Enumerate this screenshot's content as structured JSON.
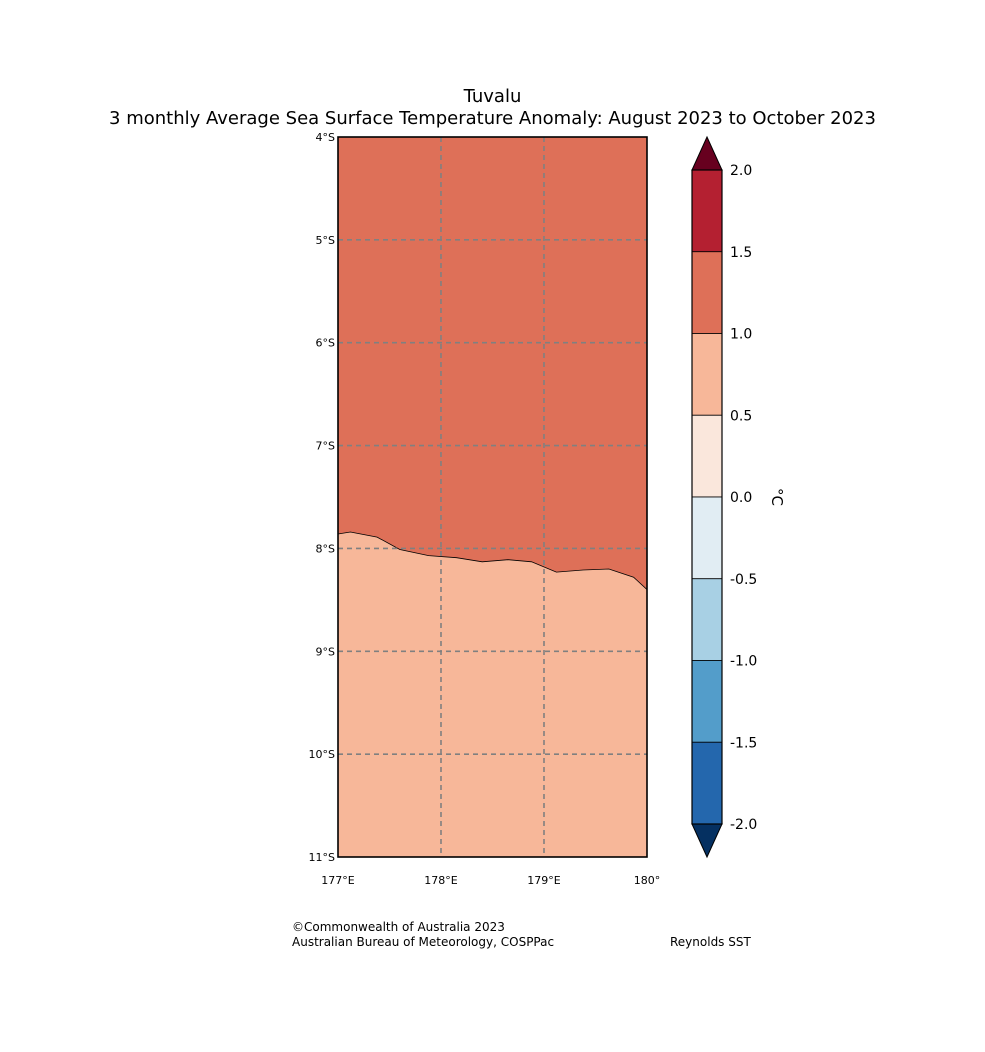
{
  "title": "Tuvalu",
  "subtitle": "3 monthly Average Sea Surface Temperature Anomaly: August 2023 to October 2023",
  "map": {
    "lat_range": [
      -11,
      -4
    ],
    "lon_range": [
      177,
      180
    ],
    "lat_ticks": [
      {
        "value": -4,
        "label": "4°S"
      },
      {
        "value": -5,
        "label": "5°S"
      },
      {
        "value": -6,
        "label": "6°S"
      },
      {
        "value": -7,
        "label": "7°S"
      },
      {
        "value": -8,
        "label": "8°S"
      },
      {
        "value": -9,
        "label": "9°S"
      },
      {
        "value": -10,
        "label": "10°S"
      },
      {
        "value": -11,
        "label": "11°S"
      }
    ],
    "lon_ticks": [
      {
        "value": 177,
        "label": "177°E"
      },
      {
        "value": 178,
        "label": "178°E"
      },
      {
        "value": 179,
        "label": "179°E"
      },
      {
        "value": 180,
        "label": "180°"
      }
    ],
    "gridlines": true,
    "regions": [
      {
        "range": "1.0 to 1.5",
        "color": "#de7058"
      },
      {
        "range": "0.5 to 1.0",
        "color": "#f7b799"
      }
    ],
    "boundary": [
      [
        177.0,
        -7.86
      ],
      [
        177.12,
        -7.84
      ],
      [
        177.38,
        -7.89
      ],
      [
        177.6,
        -8.01
      ],
      [
        177.88,
        -8.07
      ],
      [
        178.15,
        -8.09
      ],
      [
        178.4,
        -8.13
      ],
      [
        178.65,
        -8.11
      ],
      [
        178.88,
        -8.13
      ],
      [
        179.12,
        -8.23
      ],
      [
        179.38,
        -8.21
      ],
      [
        179.63,
        -8.2
      ],
      [
        179.87,
        -8.28
      ],
      [
        180.0,
        -8.4
      ]
    ]
  },
  "colorbar": {
    "unit": "°C",
    "ticks": [
      "2.0",
      "1.5",
      "1.0",
      "0.5",
      "0.0",
      "-0.5",
      "-1.0",
      "-1.5",
      "-2.0"
    ],
    "over_color": "#67001f",
    "under_color": "#053061",
    "bands": [
      {
        "range": "1.5 to 2.0",
        "color": "#b42031"
      },
      {
        "range": "1.0 to 1.5",
        "color": "#de7058"
      },
      {
        "range": "0.5 to 1.0",
        "color": "#f7b799"
      },
      {
        "range": "0.0 to 0.5",
        "color": "#fae7dc"
      },
      {
        "range": "-0.5 to 0.0",
        "color": "#e1edf3"
      },
      {
        "range": "-1.0 to -0.5",
        "color": "#a8d0e4"
      },
      {
        "range": "-1.5 to -1.0",
        "color": "#539dca"
      },
      {
        "range": "-2.0 to -1.5",
        "color": "#2467ad"
      }
    ]
  },
  "footer": {
    "copyright": "©Commonwealth of Australia 2023",
    "agency": "Australian Bureau of Meteorology, COSPPac",
    "source": "Reynolds SST"
  }
}
